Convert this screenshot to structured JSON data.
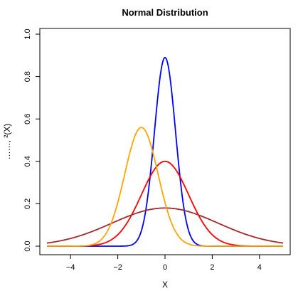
{
  "chart_data": {
    "type": "line",
    "title": "Normal Distribution",
    "xlabel": "X",
    "ylabel": "……, ²(X)",
    "xlim": [
      -5,
      5
    ],
    "ylim": [
      0,
      1.0
    ],
    "x_ticks": [
      -4,
      -2,
      0,
      2,
      4
    ],
    "x_tick_labels": [
      "−4",
      "−2",
      "0",
      "2",
      "4"
    ],
    "y_ticks": [
      0.0,
      0.2,
      0.4,
      0.6,
      0.8,
      1.0
    ],
    "y_tick_labels": [
      "0.0",
      "0.2",
      "0.4",
      "0.6",
      "0.8",
      "1.0"
    ],
    "grid": false,
    "series": [
      {
        "mu": 0,
        "sigma": 0.447,
        "peak": 0.89,
        "color": "#0000ff"
      },
      {
        "mu": 0,
        "sigma": 1.0,
        "peak": 0.4,
        "color": "#ff0000"
      },
      {
        "mu": 0,
        "sigma": 2.236,
        "peak": 0.18,
        "color": "#a52a2a"
      },
      {
        "mu": -1,
        "sigma": 0.707,
        "peak": 0.56,
        "color": "#ffa500"
      }
    ]
  }
}
